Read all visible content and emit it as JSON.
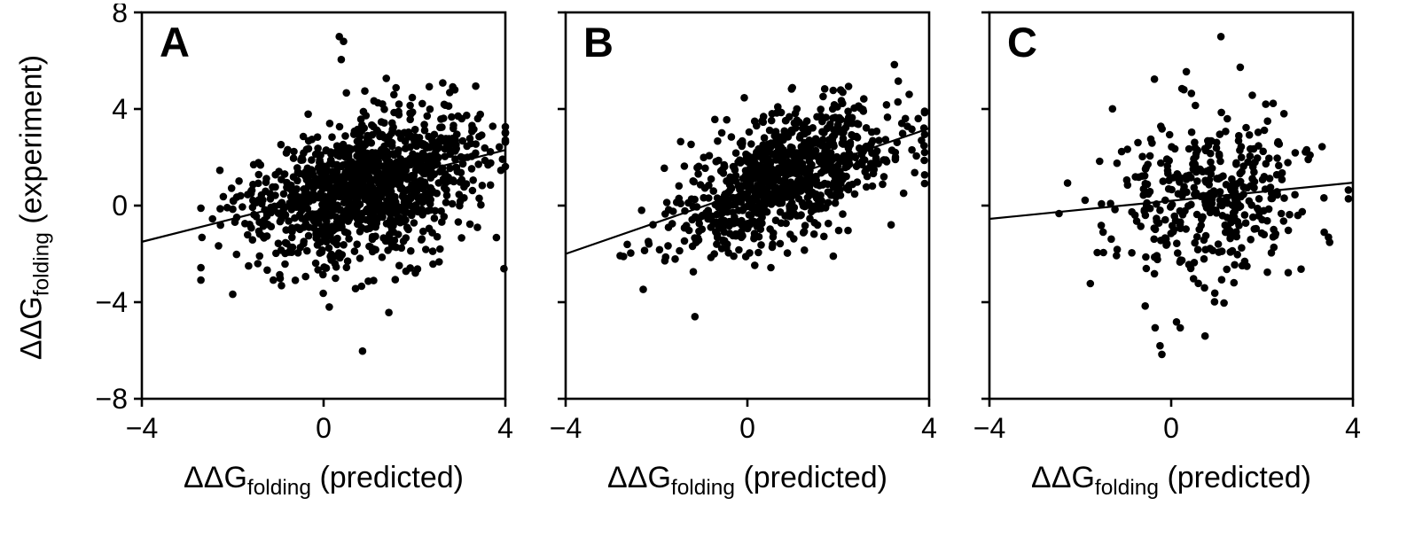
{
  "figure": {
    "background": "#ffffff",
    "ink_color": "#000000",
    "y_axis_label": {
      "prefix": "ΔΔG",
      "sub": "folding",
      "suffix": " (experiment)"
    },
    "x_axis_label": {
      "prefix": "ΔΔG",
      "sub": "folding",
      "suffix": " (predicted)"
    }
  },
  "chart_data": [
    {
      "type": "scatter",
      "panel_label": "A",
      "xlabel": "ΔΔG_folding (predicted)",
      "ylabel": "ΔΔG_folding (experiment)",
      "xlim": [
        -4,
        4
      ],
      "ylim": [
        -8,
        8
      ],
      "x_ticks": [
        -4,
        0,
        4
      ],
      "y_ticks": [
        -8,
        -4,
        0,
        4,
        8
      ],
      "show_y_tick_labels": true,
      "grid": false,
      "marker": {
        "color": "#000000",
        "radius_px": 4.3
      },
      "regression_line": {
        "x1": -4,
        "y1": -1.5,
        "x2": 4,
        "y2": 2.3
      },
      "scatter_model": {
        "note": "dense point cloud approximated from figure; points generated deterministically from these parameters",
        "seed": 11,
        "count": 1200,
        "x_mean": 0.9,
        "x_sd": 1.25,
        "x_min": -2.7,
        "x_max": 4.0,
        "noise_sd": 1.35,
        "tail_prob": 0.035,
        "tail_mult": 2.6,
        "y_min": -7.0,
        "y_max": 7.0
      }
    },
    {
      "type": "scatter",
      "panel_label": "B",
      "xlabel": "ΔΔG_folding (predicted)",
      "ylabel": "ΔΔG_folding (experiment)",
      "xlim": [
        -4,
        4
      ],
      "ylim": [
        -8,
        8
      ],
      "x_ticks": [
        -4,
        0,
        4
      ],
      "y_ticks": [
        -8,
        -4,
        0,
        4,
        8
      ],
      "show_y_tick_labels": false,
      "grid": false,
      "marker": {
        "color": "#000000",
        "radius_px": 4.3
      },
      "regression_line": {
        "x1": -4,
        "y1": -2.0,
        "x2": 4,
        "y2": 3.2
      },
      "scatter_model": {
        "note": "dense point cloud approximated from figure; points generated deterministically from these parameters",
        "seed": 23,
        "count": 880,
        "x_mean": 0.8,
        "x_sd": 1.2,
        "x_min": -2.8,
        "x_max": 3.9,
        "noise_sd": 1.15,
        "tail_prob": 0.02,
        "tail_mult": 2.2,
        "y_min": -4.6,
        "y_max": 6.5
      }
    },
    {
      "type": "scatter",
      "panel_label": "C",
      "xlabel": "ΔΔG_folding (predicted)",
      "ylabel": "ΔΔG_folding (experiment)",
      "xlim": [
        -4,
        4
      ],
      "ylim": [
        -8,
        8
      ],
      "x_ticks": [
        -4,
        0,
        4
      ],
      "y_ticks": [
        -8,
        -4,
        0,
        4,
        8
      ],
      "show_y_tick_labels": false,
      "grid": false,
      "marker": {
        "color": "#000000",
        "radius_px": 4.3
      },
      "regression_line": {
        "x1": -4,
        "y1": -0.55,
        "x2": 4,
        "y2": 0.95
      },
      "scatter_model": {
        "note": "point cloud approximated from figure; points generated deterministically from these parameters",
        "seed": 37,
        "count": 390,
        "x_mean": 0.9,
        "x_sd": 1.15,
        "x_min": -2.7,
        "x_max": 3.9,
        "noise_sd": 1.8,
        "tail_prob": 0.05,
        "tail_mult": 2.2,
        "y_min": -6.8,
        "y_max": 7.0
      }
    }
  ]
}
